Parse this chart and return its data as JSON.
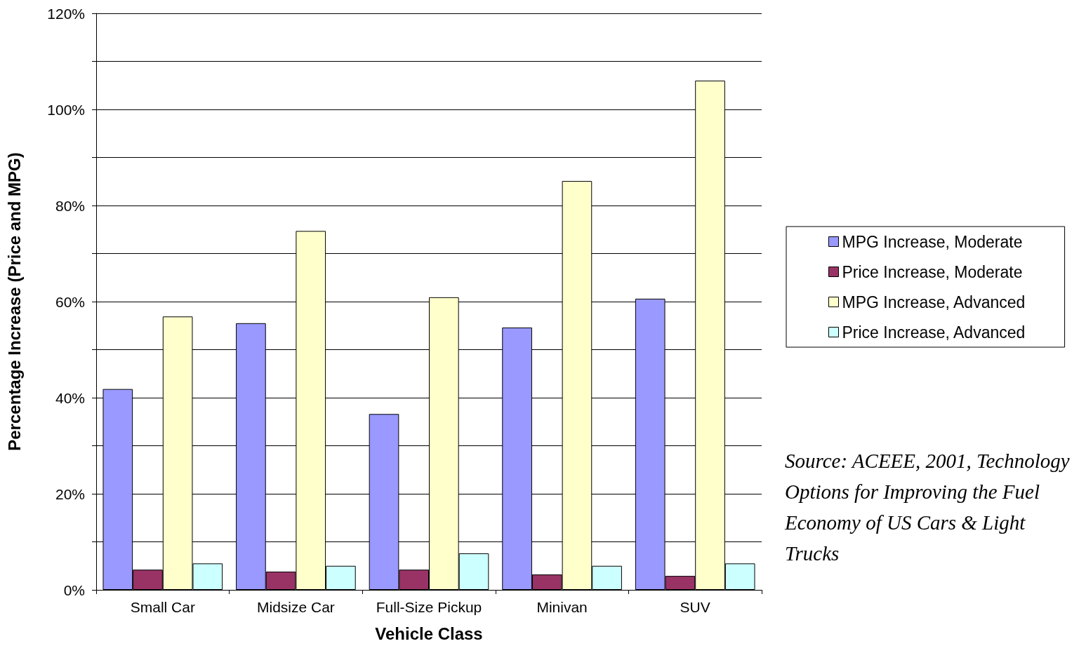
{
  "chart_data": {
    "type": "bar",
    "xlabel": "Vehicle Class",
    "ylabel": "Percentage Increase (Price and MPG)",
    "categories": [
      "Small Car",
      "Midsize Car",
      "Full-Size Pickup",
      "Minivan",
      "SUV"
    ],
    "series": [
      {
        "name": "MPG Increase, Moderate",
        "color": "#9999ff",
        "values": [
          41.8,
          55.5,
          36.6,
          54.6,
          60.6
        ]
      },
      {
        "name": "Price Increase, Moderate",
        "color": "#993366",
        "values": [
          4.2,
          3.8,
          4.2,
          3.2,
          2.9
        ]
      },
      {
        "name": "MPG Increase, Advanced",
        "color": "#ffffcc",
        "values": [
          56.9,
          74.7,
          60.9,
          85.1,
          106
        ]
      },
      {
        "name": "Price Increase, Advanced",
        "color": "#ccffff",
        "values": [
          5.5,
          5.0,
          7.6,
          5.0,
          5.5
        ]
      }
    ],
    "ylim": [
      0,
      120
    ],
    "yticks": [
      {
        "value": 0,
        "label": "0%"
      },
      {
        "value": 10,
        "label": null
      },
      {
        "value": 20,
        "label": "20%"
      },
      {
        "value": 30,
        "label": null
      },
      {
        "value": 40,
        "label": "40%"
      },
      {
        "value": 50,
        "label": null
      },
      {
        "value": 60,
        "label": "60%"
      },
      {
        "value": 70,
        "label": null
      },
      {
        "value": 80,
        "label": "80%"
      },
      {
        "value": 90,
        "label": null
      },
      {
        "value": 100,
        "label": "100%"
      },
      {
        "value": 110,
        "label": null
      },
      {
        "value": 120,
        "label": "120%"
      }
    ],
    "grid": "y",
    "legend": "right",
    "annotations": [
      "Source: ACEEE, 2001, Technology Options for Improving the Fuel Economy of US Cars & Light Trucks"
    ]
  }
}
